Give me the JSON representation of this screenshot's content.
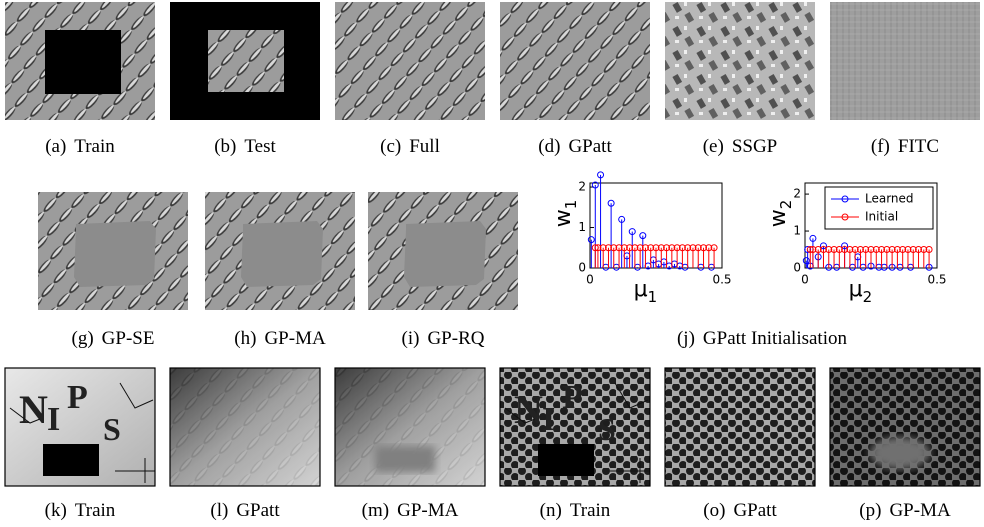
{
  "panels": [
    {
      "label": "(a)",
      "caption": "Train"
    },
    {
      "label": "(b)",
      "caption": "Test"
    },
    {
      "label": "(c)",
      "caption": "Full"
    },
    {
      "label": "(d)",
      "caption": "GPatt"
    },
    {
      "label": "(e)",
      "caption": "SSGP"
    },
    {
      "label": "(f)",
      "caption": "FITC"
    },
    {
      "label": "(g)",
      "caption": "GP-SE"
    },
    {
      "label": "(h)",
      "caption": "GP-MA"
    },
    {
      "label": "(i)",
      "caption": "GP-RQ"
    },
    {
      "label": "(k)",
      "caption": "Train",
      "letters": [
        "N",
        "I",
        "P",
        "S"
      ]
    },
    {
      "label": "(l)",
      "caption": "GPatt"
    },
    {
      "label": "(m)",
      "caption": "GP-MA"
    },
    {
      "label": "(n)",
      "caption": "Train",
      "letters": [
        "N",
        "I",
        "P",
        "S"
      ]
    },
    {
      "label": "(o)",
      "caption": "GPatt"
    },
    {
      "label": "(p)",
      "caption": "GP-MA"
    }
  ],
  "chart_caption": {
    "label": "(j)",
    "caption": "GPatt Initialisation"
  },
  "chart_data": [
    {
      "type": "stem",
      "ylabel": {
        "text": "w",
        "subscript": "1"
      },
      "xlabel": {
        "text": "μ",
        "subscript": "1"
      },
      "xlim": [
        0,
        0.5
      ],
      "ylim": [
        0,
        2.1
      ],
      "xticks": [
        0,
        0.5
      ],
      "yticks": [
        0,
        1,
        2
      ],
      "series": [
        {
          "color": "#0000ff",
          "x": [
            0.005,
            0.02,
            0.04,
            0.06,
            0.08,
            0.1,
            0.12,
            0.14,
            0.16,
            0.18,
            0.2,
            0.22,
            0.24,
            0.26,
            0.28,
            0.3,
            0.32,
            0.34,
            0.36,
            0.42,
            0.46
          ],
          "values": [
            0.7,
            2.05,
            2.3,
            0.02,
            1.6,
            0.02,
            1.2,
            0.3,
            0.9,
            0.02,
            0.8,
            0.05,
            0.2,
            0.1,
            0.15,
            0.05,
            0.1,
            0.05,
            0.02,
            0.02,
            0.02
          ]
        },
        {
          "color": "#ff0000",
          "x": [
            0.02,
            0.03,
            0.05,
            0.07,
            0.09,
            0.11,
            0.13,
            0.15,
            0.17,
            0.19,
            0.21,
            0.23,
            0.25,
            0.27,
            0.29,
            0.31,
            0.33,
            0.35,
            0.37,
            0.39,
            0.41,
            0.43,
            0.45,
            0.47
          ],
          "values": [
            0.5,
            0.5,
            0.5,
            0.5,
            0.5,
            0.5,
            0.5,
            0.5,
            0.5,
            0.5,
            0.5,
            0.5,
            0.5,
            0.5,
            0.5,
            0.5,
            0.5,
            0.5,
            0.5,
            0.5,
            0.5,
            0.5,
            0.5,
            0.5
          ]
        }
      ]
    },
    {
      "type": "stem",
      "ylabel": {
        "text": "w",
        "subscript": "2"
      },
      "xlabel": {
        "text": "μ",
        "subscript": "2"
      },
      "xlim": [
        0,
        0.5
      ],
      "ylim": [
        0,
        2.3
      ],
      "xticks": [
        0,
        0.5
      ],
      "yticks": [
        0,
        1,
        2
      ],
      "legend": "upper right",
      "series": [
        {
          "name": "Learned",
          "color": "#0000ff",
          "x": [
            0.005,
            0.01,
            0.02,
            0.03,
            0.05,
            0.07,
            0.09,
            0.12,
            0.15,
            0.18,
            0.2,
            0.22,
            0.25,
            0.28,
            0.3,
            0.33,
            0.36,
            0.4,
            0.47
          ],
          "values": [
            0.2,
            0.5,
            0.05,
            0.8,
            0.3,
            0.6,
            0.02,
            0.02,
            0.6,
            0.02,
            0.3,
            0.02,
            0.05,
            0.02,
            0.02,
            0.02,
            0.02,
            0.02,
            0.02
          ]
        },
        {
          "name": "Initial",
          "color": "#ff0000",
          "x": [
            0.02,
            0.03,
            0.05,
            0.07,
            0.09,
            0.11,
            0.13,
            0.15,
            0.17,
            0.19,
            0.21,
            0.23,
            0.25,
            0.27,
            0.29,
            0.31,
            0.33,
            0.35,
            0.37,
            0.39,
            0.41,
            0.43,
            0.45,
            0.47
          ],
          "values": [
            0.5,
            0.5,
            0.5,
            0.5,
            0.5,
            0.5,
            0.5,
            0.5,
            0.5,
            0.5,
            0.5,
            0.5,
            0.5,
            0.5,
            0.5,
            0.5,
            0.5,
            0.5,
            0.5,
            0.5,
            0.5,
            0.5,
            0.5,
            0.5
          ]
        }
      ]
    }
  ]
}
